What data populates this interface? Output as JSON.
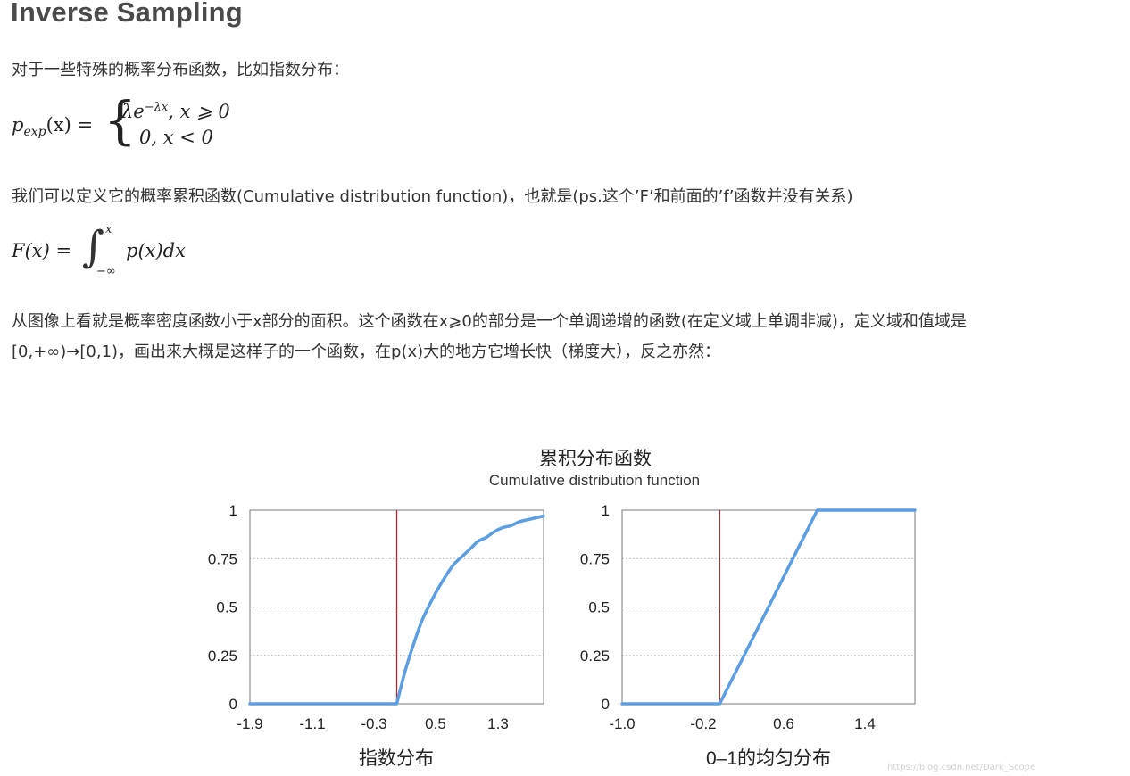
{
  "heading": "Inverse Sampling",
  "para1": "对于一些特殊的概率分布函数，比如指数分布：",
  "eq1": {
    "lhs": "p",
    "lhs_sub": "exp",
    "lhs_rest": "(x) =",
    "case1": "λe",
    "case1_sup": "−λx",
    "case1_cond": ", x ⩾ 0",
    "case2": "0, x < 0"
  },
  "para2": "我们可以定义它的概率累积函数(Cumulative distribution function)，也就是(ps.这个’F’和前面的’f’函数并没有关系)",
  "eq2": {
    "lhs": "F(x) =",
    "upper": "x",
    "lower": "−∞",
    "integrand": "p(x)dx"
  },
  "para3_line1": "从图像上看就是概率密度函数小于x部分的面积。这个函数在x⩾0的部分是一个单调递增的函数(在定义域上单调非减)，定义域和值域是",
  "para3_line2": "[0,+∞)→[0,1)，画出来大概是这样子的一个函数，在p(x)大的地方它增长快（梯度大），反之亦然：",
  "figure": {
    "title": "累积分布函数",
    "subtitle": "Cumulative distribution function"
  },
  "watermark": "https://blog.csdn.net/Dark_Scope",
  "chart_data": [
    {
      "type": "line",
      "title": "指数分布",
      "x_ticks": [
        "-1.9",
        "-1.1",
        "-0.3",
        "0.5",
        "1.3"
      ],
      "y_ticks": [
        "0",
        "0.25",
        "0.5",
        "0.75",
        "1"
      ],
      "xlim": [
        -1.9,
        1.7
      ],
      "ylim": [
        0,
        1
      ],
      "vline_x": -0.1,
      "line_color": "#5b9ee3",
      "vline_color": "#b02a2a",
      "series": [
        {
          "x": [
            -1.9,
            -0.1,
            0.0,
            0.1,
            0.2,
            0.3,
            0.4,
            0.5,
            0.6,
            0.7,
            0.8,
            0.9,
            1.0,
            1.1,
            1.2,
            1.3,
            1.4,
            1.5,
            1.6,
            1.7
          ],
          "values": [
            0,
            0,
            0.165,
            0.3,
            0.42,
            0.51,
            0.59,
            0.66,
            0.72,
            0.76,
            0.8,
            0.84,
            0.86,
            0.89,
            0.91,
            0.92,
            0.94,
            0.95,
            0.96,
            0.97
          ]
        }
      ]
    },
    {
      "type": "line",
      "title": "0–1的均匀分布",
      "x_ticks": [
        "-1.0",
        "-0.2",
        "0.6",
        "1.4"
      ],
      "y_ticks": [
        "0",
        "0.25",
        "0.5",
        "0.75",
        "1"
      ],
      "xlim": [
        -1.0,
        2.0
      ],
      "ylim": [
        0,
        1
      ],
      "vline_x": 0.0,
      "line_color": "#5b9ee3",
      "vline_color": "#b02a2a",
      "series": [
        {
          "x": [
            -1.0,
            0.0,
            1.0,
            2.0
          ],
          "values": [
            0,
            0,
            1,
            1
          ]
        }
      ]
    }
  ]
}
